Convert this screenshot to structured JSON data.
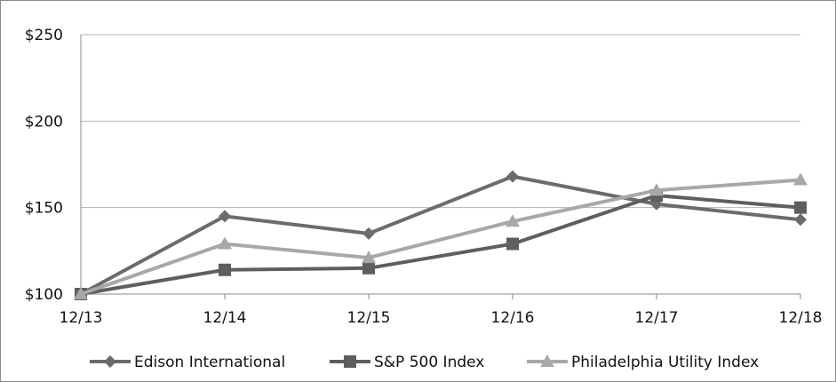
{
  "chart_data": {
    "type": "line",
    "title": "",
    "xlabel": "",
    "ylabel": "",
    "categories": [
      "12/13",
      "12/14",
      "12/15",
      "12/16",
      "12/17",
      "12/18"
    ],
    "ylim": [
      100,
      250
    ],
    "yticks": [
      100,
      150,
      200,
      250
    ],
    "ytick_labels": [
      "$100",
      "$150",
      "$200",
      "$250"
    ],
    "grid": true,
    "legend_position": "bottom",
    "series": [
      {
        "name": "Edison International",
        "values": [
          100,
          145,
          135,
          168,
          152,
          143
        ],
        "color": "#6b6b6b",
        "marker": "diamond"
      },
      {
        "name": "S&P 500 Index",
        "values": [
          100,
          114,
          115,
          129,
          157,
          150
        ],
        "color": "#5e5e5e",
        "marker": "square"
      },
      {
        "name": "Philadelphia Utility Index",
        "values": [
          100,
          129,
          121,
          142,
          160,
          166
        ],
        "color": "#a8a8a8",
        "marker": "triangle"
      }
    ]
  }
}
